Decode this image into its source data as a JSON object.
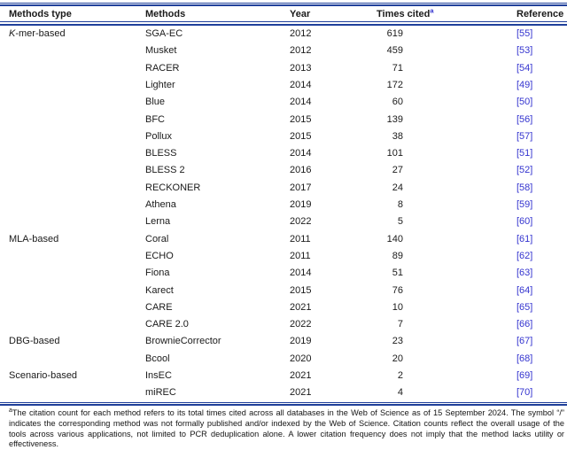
{
  "colors": {
    "rule_blue": "#20409a",
    "link_blue": "#3434cf"
  },
  "table": {
    "headers": {
      "type": "Methods type",
      "methods": "Methods",
      "year": "Year",
      "cited": "Times cited",
      "cited_sup": "a",
      "reference": "Reference"
    },
    "groups": [
      {
        "type_italic": "K",
        "type_label": "-mer-based",
        "rows": [
          {
            "method": "SGA-EC",
            "year": "2012",
            "cited": "619",
            "ref": "[55]"
          },
          {
            "method": "Musket",
            "year": "2012",
            "cited": "459",
            "ref": "[53]"
          },
          {
            "method": "RACER",
            "year": "2013",
            "cited": "71",
            "ref": "[54]"
          },
          {
            "method": "Lighter",
            "year": "2014",
            "cited": "172",
            "ref": "[49]"
          },
          {
            "method": "Blue",
            "year": "2014",
            "cited": "60",
            "ref": "[50]"
          },
          {
            "method": "BFC",
            "year": "2015",
            "cited": "139",
            "ref": "[56]"
          },
          {
            "method": "Pollux",
            "year": "2015",
            "cited": "38",
            "ref": "[57]"
          },
          {
            "method": "BLESS",
            "year": "2014",
            "cited": "101",
            "ref": "[51]"
          },
          {
            "method": "BLESS 2",
            "year": "2016",
            "cited": "27",
            "ref": "[52]"
          },
          {
            "method": "RECKONER",
            "year": "2017",
            "cited": "24",
            "ref": "[58]"
          },
          {
            "method": "Athena",
            "year": "2019",
            "cited": "8",
            "ref": "[59]"
          },
          {
            "method": "Lerna",
            "year": "2022",
            "cited": "5",
            "ref": "[60]"
          }
        ]
      },
      {
        "type_italic": "",
        "type_label": "MLA-based",
        "rows": [
          {
            "method": "Coral",
            "year": "2011",
            "cited": "140",
            "ref": "[61]"
          },
          {
            "method": "ECHO",
            "year": "2011",
            "cited": "89",
            "ref": "[62]"
          },
          {
            "method": "Fiona",
            "year": "2014",
            "cited": "51",
            "ref": "[63]"
          },
          {
            "method": "Karect",
            "year": "2015",
            "cited": "76",
            "ref": "[64]"
          },
          {
            "method": "CARE",
            "year": "2021",
            "cited": "10",
            "ref": "[65]"
          },
          {
            "method": "CARE 2.0",
            "year": "2022",
            "cited": "7",
            "ref": "[66]"
          }
        ]
      },
      {
        "type_italic": "",
        "type_label": "DBG-based",
        "rows": [
          {
            "method": "BrownieCorrector",
            "year": "2019",
            "cited": "23",
            "ref": "[67]"
          },
          {
            "method": "Bcool",
            "year": "2020",
            "cited": "20",
            "ref": "[68]"
          }
        ]
      },
      {
        "type_italic": "",
        "type_label": "Scenario-based",
        "rows": [
          {
            "method": "InsEC",
            "year": "2021",
            "cited": "2",
            "ref": "[69]"
          },
          {
            "method": "miREC",
            "year": "2021",
            "cited": "4",
            "ref": "[70]"
          }
        ]
      }
    ]
  },
  "footnote": {
    "sup": "a",
    "text": "The citation count for each method refers to its total times cited across all databases in the Web of Science as of 15 September 2024. The symbol “/” indicates the corresponding method was not formally published and/or indexed by the Web of Science. Citation counts reflect the overall usage of the tools across various applications, not limited to PCR deduplication alone. A lower citation frequency does not imply that the method lacks utility or effectiveness."
  }
}
